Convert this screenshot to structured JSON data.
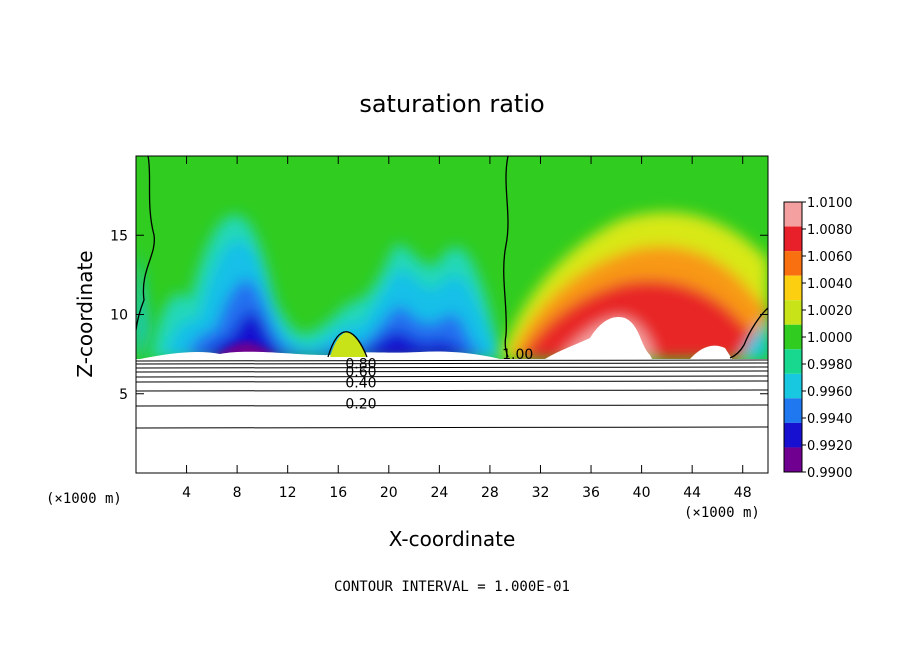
{
  "chart_data": {
    "type": "heatmap",
    "title": "saturation ratio",
    "xlabel": "X-coordinate",
    "ylabel": "Z-coordinate",
    "x_unit_label": "(×1000 m)",
    "x_unit_label_right": "(×1000 m)",
    "xlim": [
      0,
      50
    ],
    "ylim": [
      0,
      20
    ],
    "x_ticks": [
      "4",
      "8",
      "12",
      "16",
      "20",
      "24",
      "28",
      "32",
      "36",
      "40",
      "44",
      "48"
    ],
    "y_ticks": [
      "5",
      "10",
      "15"
    ],
    "colorbar": {
      "labels": [
        "1.0100",
        "1.0080",
        "1.0060",
        "1.0040",
        "1.0020",
        "1.0000",
        "0.9980",
        "0.9960",
        "0.9940",
        "0.9920",
        "0.9900"
      ],
      "colors": [
        "#f5a0a0",
        "#e8202a",
        "#f87010",
        "#fcd010",
        "#c8e418",
        "#30cc20",
        "#18d890",
        "#18c8e0",
        "#2078f0",
        "#1810d0",
        "#700090"
      ]
    },
    "contour_labels": [
      {
        "text": "1.00",
        "x": 30.2,
        "z": 7.5
      },
      {
        "text": "0.80",
        "x": 17.8,
        "z": 6.9
      },
      {
        "text": "0.60",
        "x": 17.8,
        "z": 6.4
      },
      {
        "text": "0.40",
        "x": 17.8,
        "z": 5.7
      },
      {
        "text": "0.20",
        "x": 17.8,
        "z": 4.4
      }
    ],
    "grid": false,
    "legend_position": "right",
    "footnote": "CONTOUR INTERVAL = 1.000E-01"
  }
}
